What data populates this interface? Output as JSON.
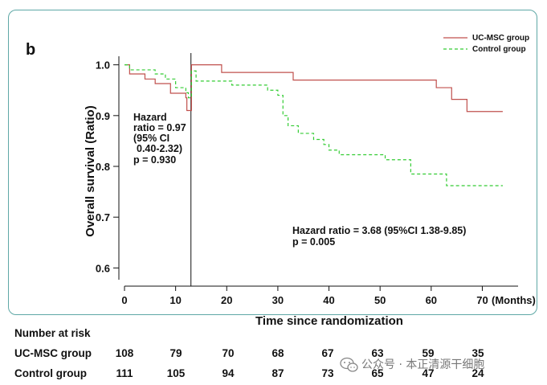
{
  "chart_data": {
    "type": "line",
    "panel_label": "b",
    "title": "",
    "xlabel": "Time since randomization",
    "ylabel": "Overall survival (Ratio)",
    "xlim": [
      0,
      77
    ],
    "ylim": [
      0.58,
      1.02
    ],
    "x_ticks": [
      0,
      10,
      20,
      30,
      40,
      50,
      60,
      70
    ],
    "x_tick_labels": [
      "0",
      "10",
      "20",
      "30",
      "40",
      "50",
      "60",
      "70"
    ],
    "x_unit_label": "(Months)",
    "y_ticks": [
      0.6,
      0.7,
      0.8,
      0.9,
      1.0
    ],
    "y_tick_labels": [
      "0.6",
      "0.7",
      "0.8",
      "0.9",
      "1.0"
    ],
    "vertical_reference_x": 13,
    "legend_position": "top-right",
    "series": [
      {
        "name": "UC-MSC group",
        "color": "#c0504d",
        "style": "solid",
        "steps": [
          [
            0,
            1.0
          ],
          [
            1,
            0.982
          ],
          [
            4,
            0.972
          ],
          [
            6,
            0.963
          ],
          [
            9,
            0.944
          ],
          [
            12,
            0.935
          ],
          [
            12.2,
            0.91
          ],
          [
            13,
            0.91
          ],
          [
            13.1,
            1.0
          ],
          [
            19,
            0.985
          ],
          [
            33,
            0.97
          ],
          [
            61,
            0.955
          ],
          [
            64,
            0.932
          ],
          [
            67,
            0.908
          ],
          [
            74,
            0.908
          ]
        ]
      },
      {
        "name": "Control group",
        "color": "#33cc33",
        "style": "dashed",
        "steps": [
          [
            0,
            1.0
          ],
          [
            1,
            0.99
          ],
          [
            6,
            0.982
          ],
          [
            8,
            0.972
          ],
          [
            10,
            0.955
          ],
          [
            12,
            0.945
          ],
          [
            12.5,
            0.935
          ],
          [
            13,
            0.935
          ],
          [
            13.1,
            0.988
          ],
          [
            14,
            0.968
          ],
          [
            21,
            0.96
          ],
          [
            28,
            0.95
          ],
          [
            30,
            0.94
          ],
          [
            31,
            0.9
          ],
          [
            32,
            0.88
          ],
          [
            34,
            0.865
          ],
          [
            37,
            0.853
          ],
          [
            39,
            0.843
          ],
          [
            40,
            0.832
          ],
          [
            42,
            0.823
          ],
          [
            51,
            0.813
          ],
          [
            56,
            0.785
          ],
          [
            63,
            0.762
          ],
          [
            74,
            0.762
          ]
        ]
      }
    ],
    "annotations": {
      "left": [
        "Hazard",
        "ratio = 0.97",
        "(95% CI",
        "0.40-2.32)",
        "p = 0.930"
      ],
      "right": [
        "Hazard ratio = 3.68 (95%CI 1.38-9.85)",
        "p = 0.005"
      ]
    }
  },
  "risk_table": {
    "title": "Number at risk",
    "rows": [
      {
        "label": "UC-MSC  group",
        "values": [
          "108",
          "79",
          "70",
          "68",
          "67",
          "63",
          "59",
          "35"
        ]
      },
      {
        "label": "Control group",
        "values": [
          "111",
          "105",
          "94",
          "87",
          "73",
          "65",
          "47",
          "24"
        ]
      }
    ]
  },
  "watermark": {
    "icon": "wechat-icon",
    "text": "公众号 · 本正清源干细胞"
  }
}
